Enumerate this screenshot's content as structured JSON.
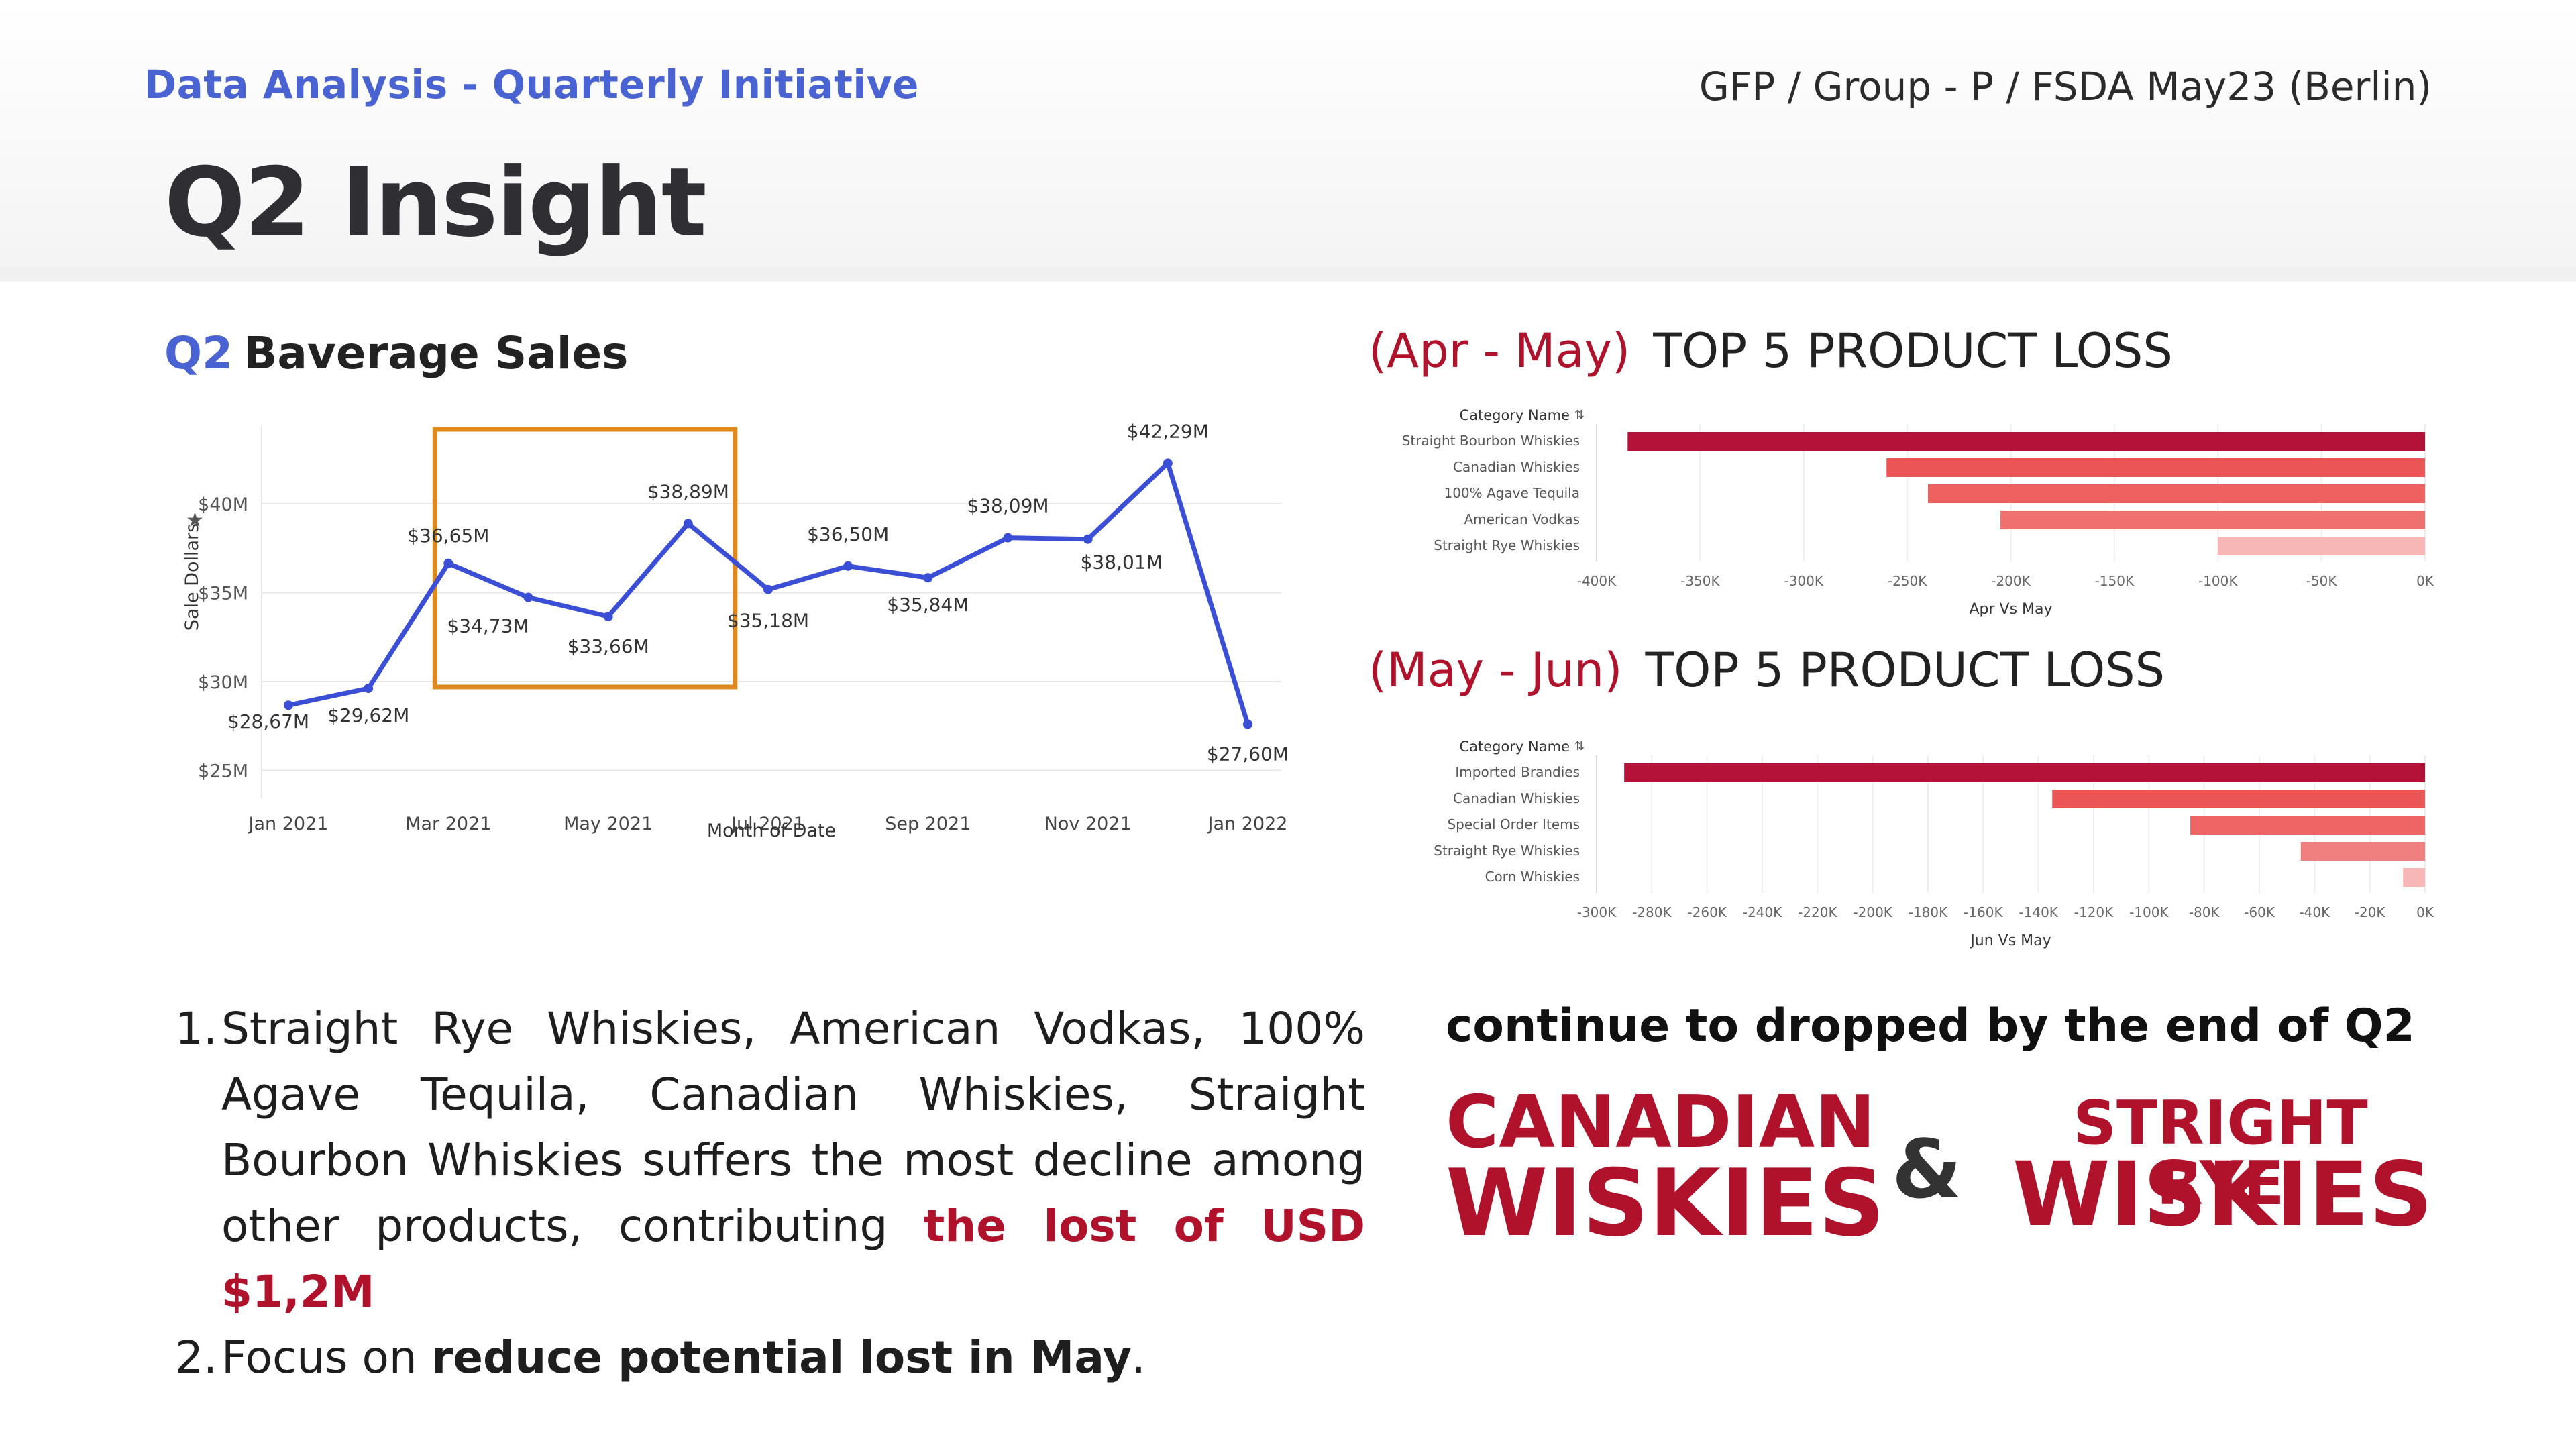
{
  "header": {
    "subtitle_left": "Data Analysis - Quarterly Initiative",
    "subtitle_right": "GFP / Group - P / FSDA May23 (Berlin)",
    "title": "Q2 Insight"
  },
  "section": {
    "accent": "Q2",
    "title": "Baverage Sales"
  },
  "loss_apr_may": {
    "period": "(Apr - May)",
    "heading": "TOP 5 PRODUCT LOSS"
  },
  "loss_may_jun": {
    "period": "(May - Jun)",
    "heading": "TOP 5 PRODUCT LOSS"
  },
  "chart_data": [
    {
      "type": "line",
      "xlabel": "Month of Date",
      "ylabel": "Sale Dollars",
      "x": [
        "Jan 2021",
        "Feb 2021",
        "Mar 2021",
        "Apr 2021",
        "May 2021",
        "Jun 2021",
        "Jul 2021",
        "Aug 2021",
        "Sep 2021",
        "Oct 2021",
        "Nov 2021",
        "Dec 2021",
        "Jan 2022"
      ],
      "values": [
        28.67,
        29.62,
        36.65,
        34.73,
        33.66,
        38.89,
        35.18,
        36.5,
        35.84,
        38.09,
        38.01,
        42.29,
        27.6
      ],
      "data_labels": [
        "$28,67M",
        "$29,62M",
        "$36,65M",
        "$34,73M",
        "$33,66M",
        "$38,89M",
        "$35,18M",
        "$36,50M",
        "$35,84M",
        "$38,09M",
        "$38,01M",
        "$42,29M",
        "$27,60M"
      ],
      "x_tick_labels": [
        "Jan 2021",
        "Mar 2021",
        "May 2021",
        "Jul 2021",
        "Sep 2021",
        "Nov 2021",
        "Jan 2022"
      ],
      "y_tick_labels": [
        "$25M",
        "$30M",
        "$35M",
        "$40M"
      ],
      "y_ticks": [
        25,
        30,
        35,
        40
      ],
      "ylim": [
        24,
        44
      ],
      "highlight_range": [
        "Mar 2021",
        "Jun 2021"
      ],
      "line_color": "#3b4fd6",
      "highlight_color": "#e08a1e",
      "grid": true
    },
    {
      "type": "bar",
      "orientation": "horizontal",
      "ylabel": "Category Name",
      "xlabel": "Apr Vs May",
      "categories": [
        "Straight Bourbon Whiskies",
        "Canadian Whiskies",
        "100% Agave Tequila",
        "American Vodkas",
        "Straight Rye Whiskies"
      ],
      "values": [
        -385000,
        -260000,
        -240000,
        -205000,
        -100000
      ],
      "x_tick_values": [
        -400000,
        -350000,
        -300000,
        -250000,
        -200000,
        -150000,
        -100000,
        -50000,
        0
      ],
      "x_tick_labels": [
        "-400K",
        "-350K",
        "-300K",
        "-250K",
        "-200K",
        "-150K",
        "-100K",
        "-50K",
        "0K"
      ],
      "xlim": [
        -400000,
        0
      ],
      "colors": [
        "#b5123a",
        "#ec5555",
        "#ef6060",
        "#f07070",
        "#f7b7b7"
      ]
    },
    {
      "type": "bar",
      "orientation": "horizontal",
      "ylabel": "Category Name",
      "xlabel": "Jun Vs May",
      "categories": [
        "Imported Brandies",
        "Canadian Whiskies",
        "Special Order Items",
        "Straight Rye Whiskies",
        "Corn Whiskies"
      ],
      "values": [
        -290000,
        -135000,
        -85000,
        -45000,
        -8000
      ],
      "x_tick_values": [
        -300000,
        -280000,
        -260000,
        -240000,
        -220000,
        -200000,
        -180000,
        -160000,
        -140000,
        -120000,
        -100000,
        -80000,
        -60000,
        -40000,
        -20000,
        0
      ],
      "x_tick_labels": [
        "-300K",
        "-280K",
        "-260K",
        "-240K",
        "-220K",
        "-200K",
        "-180K",
        "-160K",
        "-140K",
        "-120K",
        "-100K",
        "-80K",
        "-60K",
        "-40K",
        "-20K",
        "0K"
      ],
      "xlim": [
        -300000,
        0
      ],
      "colors": [
        "#b5123a",
        "#ec5555",
        "#ef6565",
        "#f08080",
        "#f7b7b7"
      ]
    }
  ],
  "insights": {
    "item1_num": "1.",
    "item1_text": "Straight Rye Whiskies, American Vodkas, 100% Agave Tequila, Canadian Whiskies, Straight Bourbon Whiskies suffers the most decline among other products, contributing ",
    "item1_highlight": "the lost of USD $1,2M",
    "item2_num": "2.",
    "item2_prefix": "Focus on ",
    "item2_bold": "reduce potential lost in May",
    "item2_suffix": "."
  },
  "callout": {
    "lead": "continue to dropped by the end of Q2",
    "left_line1": "CANADIAN",
    "left_line2": "WISKIES",
    "ampersand": "&",
    "right_line1": "STRIGHT RYE",
    "right_line2": "WISKIES"
  },
  "colors": {
    "accent_blue": "#4a63d3",
    "accent_red": "#b0112b"
  }
}
